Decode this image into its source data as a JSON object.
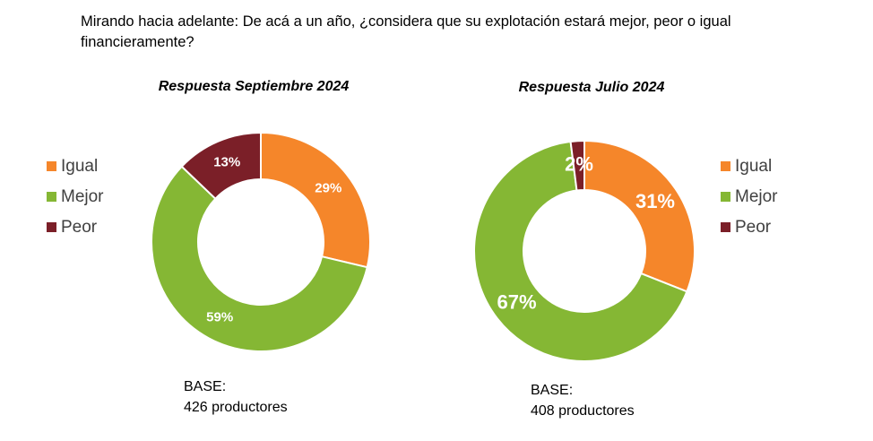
{
  "title": "Mirando hacia adelante: De acá a un año, ¿considera que su explotación  estará mejor, peor o igual financieramente?",
  "chart_data": [
    {
      "type": "donut",
      "title": "Respuesta Septiembre 2024",
      "categories": [
        "Igual",
        "Mejor",
        "Peor"
      ],
      "values": [
        29,
        59,
        13
      ],
      "value_labels": [
        "29%",
        "59%",
        "13%"
      ],
      "colors": [
        "#f5862a",
        "#85b734",
        "#7b1f28"
      ],
      "annotations": [
        "BASE:",
        "426 productores"
      ]
    },
    {
      "type": "donut",
      "title": "Respuesta Julio 2024",
      "categories": [
        "Igual",
        "Mejor",
        "Peor"
      ],
      "values": [
        31,
        67,
        2
      ],
      "value_labels": [
        "31%",
        "67%",
        "2%"
      ],
      "colors": [
        "#f5862a",
        "#85b734",
        "#7b1f28"
      ],
      "annotations": [
        "BASE:",
        "408 productores"
      ]
    }
  ]
}
